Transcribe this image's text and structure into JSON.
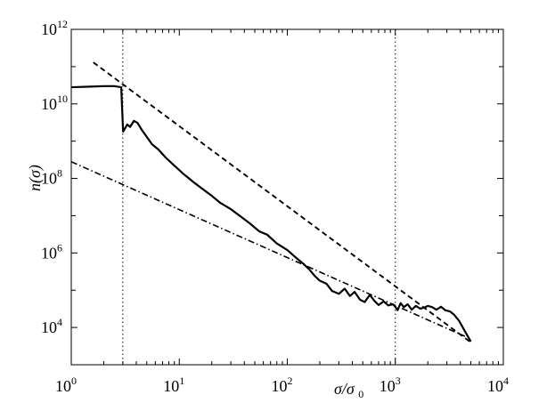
{
  "chart_data": {
    "type": "line",
    "title": "",
    "xlabel": "σ/σ0",
    "ylabel": "n(σ)",
    "xscale": "log",
    "yscale": "log",
    "xlim": [
      1,
      10000
    ],
    "ylim": [
      1000,
      1000000000000
    ],
    "grid": false,
    "legend": "none",
    "x_tick_labels": [
      {
        "base": "10",
        "exp": "0"
      },
      {
        "base": "10",
        "exp": "1"
      },
      {
        "base": "10",
        "exp": "2"
      },
      {
        "base": "10",
        "exp": "3"
      },
      {
        "base": "10",
        "exp": "4"
      }
    ],
    "y_tick_labels": [
      {
        "base": "10",
        "exp": "4"
      },
      {
        "base": "10",
        "exp": "6"
      },
      {
        "base": "10",
        "exp": "8"
      },
      {
        "base": "10",
        "exp": "10"
      },
      {
        "base": "10",
        "exp": "12"
      }
    ],
    "reference_lines": [
      {
        "axis": "x",
        "value": 3,
        "style": "dotted"
      },
      {
        "axis": "x",
        "value": 1000,
        "style": "dotted"
      }
    ],
    "series": [
      {
        "style": "solid",
        "x": [
          1,
          1.5,
          2.0,
          2.5,
          2.9,
          3.02,
          3.3,
          3.5,
          3.8,
          4.1,
          4.5,
          5,
          5.6,
          6.4,
          7.5,
          9,
          11,
          13.5,
          16,
          20,
          24,
          30,
          37,
          45,
          55,
          65,
          80,
          100,
          120,
          140,
          160,
          180,
          200,
          230,
          260,
          300,
          340,
          380,
          420,
          470,
          520,
          580,
          640,
          700,
          780,
          860,
          950,
          1000,
          1050,
          1120,
          1200,
          1300,
          1420,
          1550,
          1700,
          1850,
          2000,
          2200,
          2400,
          2650,
          2900,
          3200,
          3500,
          3900,
          4400,
          5000
        ],
        "y": [
          28000000000,
          29000000000,
          30000000000,
          30000000000,
          28000000000,
          1800000000,
          2800000000,
          2400000000,
          3500000000,
          3100000000,
          2000000000,
          1300000000,
          820000000,
          600000000,
          360000000,
          220000000,
          130000000,
          80000000,
          55000000,
          34000000,
          22000000,
          15000000,
          9500000,
          6200000,
          3800000,
          3100000,
          1800000,
          1200000,
          750000,
          520000,
          360000,
          240000,
          180000,
          150000,
          95000,
          80000,
          110000,
          70000,
          90000,
          56000,
          48000,
          75000,
          52000,
          40000,
          50000,
          39000,
          42000,
          36000,
          29000,
          45000,
          35000,
          42000,
          30000,
          38000,
          32000,
          34000,
          38000,
          35000,
          30000,
          36000,
          29000,
          27000,
          22000,
          15000,
          8000,
          4200
        ]
      },
      {
        "style": "dashed",
        "x": [
          1.6,
          5000
        ],
        "y": [
          130000000000,
          4000
        ]
      },
      {
        "style": "dash-dot",
        "x": [
          1,
          4400
        ],
        "y": [
          280000000,
          5800
        ]
      }
    ]
  }
}
